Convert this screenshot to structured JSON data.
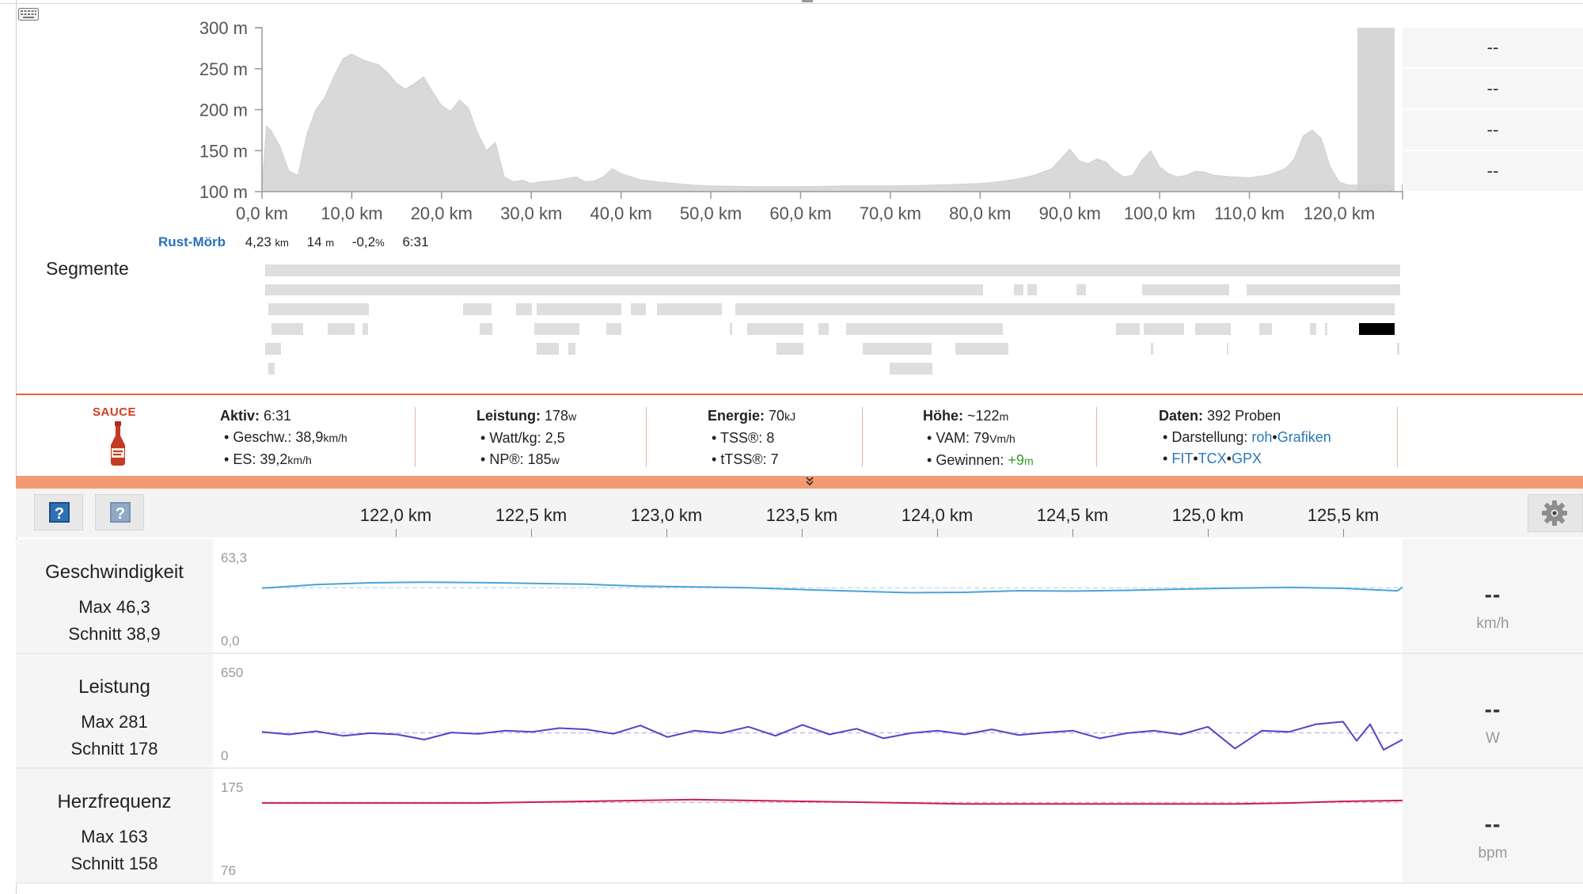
{
  "elevation_chart": {
    "y_ticks": [
      "300 m",
      "250 m",
      "200 m",
      "150 m",
      "100 m"
    ],
    "x_ticks": [
      "0,0 km",
      "10,0 km",
      "20,0 km",
      "30,0 km",
      "40,0 km",
      "50,0 km",
      "60,0 km",
      "70,0 km",
      "80,0 km",
      "90,0 km",
      "100,0 km",
      "110,0 km",
      "120,0 km"
    ],
    "fill_color": "#d9d9d9",
    "selection_color": "#cfcfcf"
  },
  "chart_data": [
    {
      "type": "area",
      "x": [
        0,
        0.5,
        1,
        2,
        3,
        4,
        5,
        6,
        7,
        8,
        9,
        10,
        11,
        12,
        13,
        14,
        15,
        16,
        17,
        18,
        19,
        20,
        21,
        22,
        23,
        24,
        25,
        26,
        27,
        28,
        29,
        30,
        31,
        32,
        33,
        34,
        35,
        36,
        37,
        38,
        39,
        40,
        42,
        44,
        46,
        48,
        50,
        55,
        60,
        65,
        70,
        75,
        80,
        82,
        84,
        86,
        88,
        89,
        90,
        91,
        92,
        93,
        94,
        95,
        96,
        97,
        98,
        99,
        100,
        101,
        102,
        103,
        104,
        105,
        106,
        108,
        110,
        112,
        114,
        115,
        116,
        117,
        118,
        119,
        120,
        121,
        122,
        123,
        124,
        125,
        126
      ],
      "y": [
        105,
        180,
        175,
        155,
        125,
        120,
        170,
        200,
        215,
        240,
        262,
        268,
        262,
        258,
        255,
        245,
        232,
        225,
        232,
        240,
        222,
        205,
        198,
        212,
        202,
        172,
        150,
        160,
        118,
        112,
        114,
        110,
        112,
        113,
        114,
        116,
        118,
        112,
        113,
        118,
        128,
        122,
        115,
        112,
        110,
        108,
        107,
        106,
        106,
        107,
        107,
        108,
        110,
        112,
        115,
        120,
        128,
        140,
        152,
        138,
        134,
        140,
        136,
        125,
        118,
        120,
        138,
        150,
        130,
        122,
        118,
        120,
        125,
        124,
        120,
        118,
        117,
        120,
        128,
        140,
        168,
        175,
        165,
        130,
        112,
        108,
        108,
        107,
        108,
        110,
        105
      ],
      "x_range": [
        0,
        126
      ],
      "y_range": [
        100,
        300
      ],
      "xlabel": "",
      "ylabel": ""
    },
    {
      "type": "line",
      "title": "Geschwindigkeit",
      "x": [
        121.5,
        121.7,
        121.9,
        122.1,
        122.3,
        122.5,
        122.7,
        122.9,
        123.1,
        123.3,
        123.5,
        123.7,
        123.9,
        124.1,
        124.3,
        124.5,
        124.7,
        124.9,
        125.1,
        125.3,
        125.5,
        125.7,
        125.72
      ],
      "y": [
        40.5,
        43.2,
        44.6,
        45.1,
        44.8,
        44.2,
        43.5,
        42.0,
        41.5,
        40.8,
        39.5,
        38.2,
        37.1,
        37.4,
        38.6,
        38.3,
        38.9,
        39.8,
        40.6,
        41.2,
        40.4,
        38.5,
        41.2
      ],
      "y_range": [
        0.0,
        63.3
      ],
      "y_tick_labels": [
        "63,3",
        "0,0"
      ],
      "color": "#4aa3df"
    },
    {
      "type": "line",
      "title": "Leistung",
      "x": [
        121.5,
        121.6,
        121.7,
        121.8,
        121.9,
        122.0,
        122.1,
        122.2,
        122.3,
        122.4,
        122.5,
        122.6,
        122.7,
        122.8,
        122.9,
        123.0,
        123.1,
        123.2,
        123.3,
        123.4,
        123.5,
        123.6,
        123.7,
        123.8,
        123.9,
        124.0,
        124.1,
        124.2,
        124.3,
        124.4,
        124.5,
        124.6,
        124.7,
        124.8,
        124.9,
        125.0,
        125.1,
        125.2,
        125.3,
        125.4,
        125.5,
        125.55,
        125.6,
        125.65,
        125.72
      ],
      "y": [
        190,
        170,
        195,
        160,
        180,
        170,
        130,
        185,
        175,
        200,
        190,
        220,
        210,
        175,
        240,
        150,
        200,
        180,
        230,
        160,
        245,
        170,
        215,
        140,
        180,
        200,
        170,
        210,
        165,
        185,
        200,
        140,
        180,
        200,
        170,
        230,
        60,
        200,
        190,
        250,
        270,
        120,
        250,
        50,
        130
      ],
      "y_range": [
        0,
        650
      ],
      "y_tick_labels": [
        "650",
        "0"
      ],
      "color": "#5b3fc8"
    },
    {
      "type": "line",
      "title": "Herzfrequenz",
      "x": [
        121.5,
        121.7,
        121.9,
        122.1,
        122.3,
        122.5,
        122.7,
        122.9,
        123.1,
        123.3,
        123.5,
        123.7,
        123.9,
        124.1,
        124.3,
        124.5,
        124.7,
        124.9,
        125.1,
        125.3,
        125.5,
        125.72
      ],
      "y": [
        157,
        157,
        157,
        157,
        157,
        158,
        159,
        160,
        161,
        160,
        159,
        158,
        157,
        156,
        156,
        156,
        156,
        156,
        156,
        157,
        159,
        160
      ],
      "y_range": [
        76,
        175
      ],
      "y_tick_labels": [
        "175",
        "76"
      ],
      "color": "#c8204f"
    }
  ],
  "right_column": [
    "--",
    "--",
    "--",
    "--"
  ],
  "segment": {
    "name": "Rust-Mörb",
    "distance": "4,23",
    "distance_unit": "km",
    "elevation": "14",
    "elevation_unit": "m",
    "grade": "-0,2",
    "grade_unit": "%",
    "time": "6:31"
  },
  "segments_heading": "Segmente",
  "summary": {
    "logo": "SAUCE",
    "active": {
      "label": "Aktiv:",
      "value": "6:31"
    },
    "speed": {
      "label": "Geschw.:",
      "value": "38,9",
      "unit": "km/h"
    },
    "es": {
      "label": "ES:",
      "value": "39,2",
      "unit": "km/h"
    },
    "power": {
      "label": "Leistung:",
      "value": "178",
      "unit": "w"
    },
    "wkg": {
      "label": "Watt/kg:",
      "value": "2,5"
    },
    "np": {
      "label": "NP®:",
      "value": "185",
      "unit": "w"
    },
    "energy": {
      "label": "Energie:",
      "value": "70",
      "unit": "kJ"
    },
    "tss": {
      "label": "TSS®:",
      "value": "8"
    },
    "ttss": {
      "label": "tTSS®:",
      "value": "7"
    },
    "altitude": {
      "label": "Höhe:",
      "value": "~122",
      "unit": "m"
    },
    "vam": {
      "label": "VAM:",
      "value": "79",
      "unit": "Vm/h"
    },
    "gain": {
      "label": "Gewinnen:",
      "value": "+9",
      "unit": "m"
    },
    "data": {
      "label": "Daten:",
      "value": "392 Proben"
    },
    "display": {
      "label": "Darstellung:",
      "raw": "roh",
      "graphs": "Grafiken"
    },
    "exports": {
      "fit": "FIT",
      "tcx": "TCX",
      "gpx": "GPX"
    },
    "bullet": "•"
  },
  "distance_axis": [
    "122,0 km",
    "122,5 km",
    "123,0 km",
    "123,5 km",
    "124,0 km",
    "124,5 km",
    "125,0 km",
    "125,5 km"
  ],
  "streams": [
    {
      "title": "Geschwindigkeit",
      "max": "Max 46,3",
      "avg": "Schnitt 38,9",
      "dash": "--",
      "unit": "km/h",
      "y_top": "63,3",
      "y_bottom": "0,0"
    },
    {
      "title": "Leistung",
      "max": "Max 281",
      "avg": "Schnitt 178",
      "dash": "--",
      "unit": "W",
      "y_top": "650",
      "y_bottom": "0"
    },
    {
      "title": "Herzfrequenz",
      "max": "Max 163",
      "avg": "Schnitt 158",
      "dash": "--",
      "unit": "bpm",
      "y_top": "175",
      "y_bottom": "76"
    }
  ],
  "icons": {
    "keyboard": "keyboard-icon",
    "help": "help-icon",
    "help_alt": "help-alt-icon",
    "gear": "gear-icon",
    "collapse": "chevron-double-down-icon",
    "bottle": "sauce-bottle-icon"
  }
}
